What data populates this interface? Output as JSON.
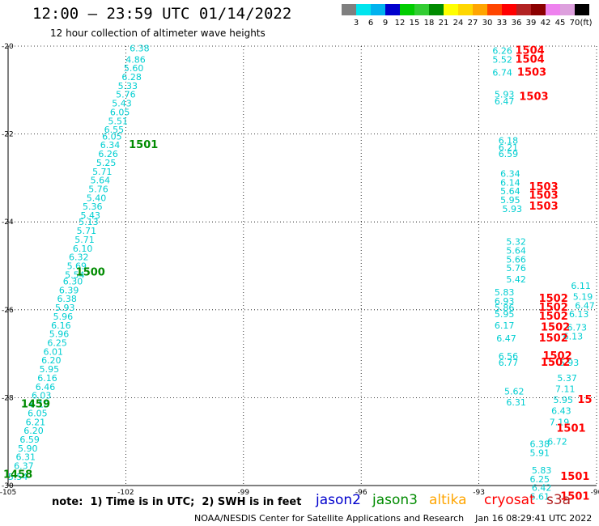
{
  "header": {
    "title": "12:00 – 23:59 UTC 01/14/2022",
    "subtitle": "12 hour collection of altimeter wave heights"
  },
  "colorbar": {
    "unit_label": "(ft)",
    "bins": [
      {
        "label": "3",
        "color": "#7f7f7f"
      },
      {
        "label": "6",
        "color": "#00e5ee"
      },
      {
        "label": "9",
        "color": "#00b2ee"
      },
      {
        "label": "12",
        "color": "#0000cd"
      },
      {
        "label": "15",
        "color": "#00cd00"
      },
      {
        "label": "18",
        "color": "#32cd32"
      },
      {
        "label": "21",
        "color": "#008b00"
      },
      {
        "label": "24",
        "color": "#ffff00"
      },
      {
        "label": "27",
        "color": "#ffd700"
      },
      {
        "label": "30",
        "color": "#ffa500"
      },
      {
        "label": "33",
        "color": "#ff4500"
      },
      {
        "label": "36",
        "color": "#ff0000"
      },
      {
        "label": "39",
        "color": "#b22222"
      },
      {
        "label": "42",
        "color": "#8b0000"
      },
      {
        "label": "45",
        "color": "#ee82ee"
      },
      {
        "label": "70",
        "color": "#dda0dd"
      },
      {
        "label": "",
        "color": "#000000"
      }
    ]
  },
  "map": {
    "lon_range": [
      -105,
      -90
    ],
    "lat_range": [
      -30,
      -20
    ],
    "lon_ticks": [
      "-105",
      "-102",
      "-99",
      "-96",
      "-93",
      "-90"
    ],
    "lat_ticks": [
      "-20",
      "-22",
      "-24",
      "-26",
      "-28",
      "-30"
    ]
  },
  "swh_labels": [
    {
      "text": "6.38",
      "lon": -101.65,
      "lat": -20.05,
      "color": "#00ced1"
    },
    {
      "text": "4.86",
      "lon": -101.75,
      "lat": -20.3,
      "color": "#00ced1"
    },
    {
      "text": "5.60",
      "lon": -101.8,
      "lat": -20.5,
      "color": "#00ced1"
    },
    {
      "text": "6.28",
      "lon": -101.85,
      "lat": -20.7,
      "color": "#00ced1"
    },
    {
      "text": "5.33",
      "lon": -101.95,
      "lat": -20.9,
      "color": "#00ced1"
    },
    {
      "text": "5.76",
      "lon": -102.0,
      "lat": -21.1,
      "color": "#00ced1"
    },
    {
      "text": "5.43",
      "lon": -102.1,
      "lat": -21.3,
      "color": "#00ced1"
    },
    {
      "text": "6.05",
      "lon": -102.15,
      "lat": -21.5,
      "color": "#00ced1"
    },
    {
      "text": "5.51",
      "lon": -102.2,
      "lat": -21.7,
      "color": "#00ced1"
    },
    {
      "text": "6.55",
      "lon": -102.3,
      "lat": -21.9,
      "color": "#00ced1"
    },
    {
      "text": "6.05",
      "lon": -102.35,
      "lat": -22.05,
      "color": "#00ced1"
    },
    {
      "text": "6.34",
      "lon": -102.4,
      "lat": -22.25,
      "color": "#00ced1"
    },
    {
      "text": "6.26",
      "lon": -102.45,
      "lat": -22.45,
      "color": "#00ced1"
    },
    {
      "text": "5.25",
      "lon": -102.5,
      "lat": -22.65,
      "color": "#00ced1"
    },
    {
      "text": "5.71",
      "lon": -102.6,
      "lat": -22.85,
      "color": "#00ced1"
    },
    {
      "text": "5.64",
      "lon": -102.65,
      "lat": -23.05,
      "color": "#00ced1"
    },
    {
      "text": "5.76",
      "lon": -102.7,
      "lat": -23.25,
      "color": "#00ced1"
    },
    {
      "text": "5.40",
      "lon": -102.75,
      "lat": -23.45,
      "color": "#00ced1"
    },
    {
      "text": "5.36",
      "lon": -102.85,
      "lat": -23.65,
      "color": "#00ced1"
    },
    {
      "text": "5.43",
      "lon": -102.9,
      "lat": -23.85,
      "color": "#00ced1"
    },
    {
      "text": "5.13",
      "lon": -102.95,
      "lat": -24.0,
      "color": "#00ced1"
    },
    {
      "text": "5.71",
      "lon": -103.0,
      "lat": -24.2,
      "color": "#00ced1"
    },
    {
      "text": "5.71",
      "lon": -103.05,
      "lat": -24.4,
      "color": "#00ced1"
    },
    {
      "text": "6.10",
      "lon": -103.1,
      "lat": -24.6,
      "color": "#00ced1"
    },
    {
      "text": "6.32",
      "lon": -103.2,
      "lat": -24.8,
      "color": "#00ced1"
    },
    {
      "text": "5.69",
      "lon": -103.25,
      "lat": -25.0,
      "color": "#00ced1"
    },
    {
      "text": "5.54",
      "lon": -103.3,
      "lat": -25.2,
      "color": "#00ced1"
    },
    {
      "text": "6.30",
      "lon": -103.35,
      "lat": -25.35,
      "color": "#00ced1"
    },
    {
      "text": "6.39",
      "lon": -103.45,
      "lat": -25.55,
      "color": "#00ced1"
    },
    {
      "text": "6.38",
      "lon": -103.5,
      "lat": -25.75,
      "color": "#00ced1"
    },
    {
      "text": "5.93",
      "lon": -103.55,
      "lat": -25.95,
      "color": "#00ced1"
    },
    {
      "text": "5.96",
      "lon": -103.6,
      "lat": -26.15,
      "color": "#00ced1"
    },
    {
      "text": "6.16",
      "lon": -103.65,
      "lat": -26.35,
      "color": "#00ced1"
    },
    {
      "text": "5.96",
      "lon": -103.7,
      "lat": -26.55,
      "color": "#00ced1"
    },
    {
      "text": "6.25",
      "lon": -103.75,
      "lat": -26.75,
      "color": "#00ced1"
    },
    {
      "text": "6.01",
      "lon": -103.85,
      "lat": -26.95,
      "color": "#00ced1"
    },
    {
      "text": "6.20",
      "lon": -103.9,
      "lat": -27.15,
      "color": "#00ced1"
    },
    {
      "text": "5.95",
      "lon": -103.95,
      "lat": -27.35,
      "color": "#00ced1"
    },
    {
      "text": "6.16",
      "lon": -104.0,
      "lat": -27.55,
      "color": "#00ced1"
    },
    {
      "text": "6.46",
      "lon": -104.05,
      "lat": -27.75,
      "color": "#00ced1"
    },
    {
      "text": "6.03",
      "lon": -104.15,
      "lat": -27.95,
      "color": "#00ced1"
    },
    {
      "text": "6.18",
      "lon": -104.2,
      "lat": -28.15,
      "color": "#00ced1"
    },
    {
      "text": "6.05",
      "lon": -104.25,
      "lat": -28.35,
      "color": "#00ced1"
    },
    {
      "text": "6.21",
      "lon": -104.3,
      "lat": -28.55,
      "color": "#00ced1"
    },
    {
      "text": "6.20",
      "lon": -104.35,
      "lat": -28.75,
      "color": "#00ced1"
    },
    {
      "text": "6.59",
      "lon": -104.45,
      "lat": -28.95,
      "color": "#00ced1"
    },
    {
      "text": "5.90",
      "lon": -104.5,
      "lat": -29.15,
      "color": "#00ced1"
    },
    {
      "text": "6.31",
      "lon": -104.55,
      "lat": -29.35,
      "color": "#00ced1"
    },
    {
      "text": "6.37",
      "lon": -104.6,
      "lat": -29.55,
      "color": "#00ced1"
    },
    {
      "text": "5.54",
      "lon": -104.75,
      "lat": -29.8,
      "color": "#00ced1"
    },
    {
      "text": "6.26",
      "lon": -92.4,
      "lat": -20.1,
      "color": "#00ced1"
    },
    {
      "text": "5.52",
      "lon": -92.4,
      "lat": -20.3,
      "color": "#00ced1"
    },
    {
      "text": "6.74",
      "lon": -92.4,
      "lat": -20.6,
      "color": "#00ced1"
    },
    {
      "text": "5.93",
      "lon": -92.35,
      "lat": -21.1,
      "color": "#00ced1"
    },
    {
      "text": "6.47",
      "lon": -92.35,
      "lat": -21.25,
      "color": "#00ced1"
    },
    {
      "text": "6.18",
      "lon": -92.25,
      "lat": -22.15,
      "color": "#00ced1"
    },
    {
      "text": "6.21",
      "lon": -92.25,
      "lat": -22.3,
      "color": "#00ced1"
    },
    {
      "text": "6.59",
      "lon": -92.25,
      "lat": -22.45,
      "color": "#00ced1"
    },
    {
      "text": "6.34",
      "lon": -92.2,
      "lat": -22.9,
      "color": "#00ced1"
    },
    {
      "text": "6.14",
      "lon": -92.2,
      "lat": -23.1,
      "color": "#00ced1"
    },
    {
      "text": "5.64",
      "lon": -92.2,
      "lat": -23.3,
      "color": "#00ced1"
    },
    {
      "text": "5.95",
      "lon": -92.2,
      "lat": -23.5,
      "color": "#00ced1"
    },
    {
      "text": "5.93",
      "lon": -92.15,
      "lat": -23.7,
      "color": "#00ced1"
    },
    {
      "text": "5.32",
      "lon": -92.05,
      "lat": -24.45,
      "color": "#00ced1"
    },
    {
      "text": "5.64",
      "lon": -92.05,
      "lat": -24.65,
      "color": "#00ced1"
    },
    {
      "text": "5.66",
      "lon": -92.05,
      "lat": -24.85,
      "color": "#00ced1"
    },
    {
      "text": "5.76",
      "lon": -92.05,
      "lat": -25.05,
      "color": "#00ced1"
    },
    {
      "text": "5.42",
      "lon": -92.05,
      "lat": -25.3,
      "color": "#00ced1"
    },
    {
      "text": "5.83",
      "lon": -92.35,
      "lat": -25.6,
      "color": "#00ced1"
    },
    {
      "text": "6.93",
      "lon": -92.35,
      "lat": -25.8,
      "color": "#00ced1"
    },
    {
      "text": "5.86",
      "lon": -92.35,
      "lat": -25.95,
      "color": "#00ced1"
    },
    {
      "text": "5.95",
      "lon": -92.35,
      "lat": -26.1,
      "color": "#00ced1"
    },
    {
      "text": "6.17",
      "lon": -92.35,
      "lat": -26.35,
      "color": "#00ced1"
    },
    {
      "text": "6.47",
      "lon": -92.3,
      "lat": -26.65,
      "color": "#00ced1"
    },
    {
      "text": "6.56",
      "lon": -92.25,
      "lat": -27.05,
      "color": "#00ced1"
    },
    {
      "text": "6.77",
      "lon": -92.25,
      "lat": -27.2,
      "color": "#00ced1"
    },
    {
      "text": "5.62",
      "lon": -92.1,
      "lat": -27.85,
      "color": "#00ced1"
    },
    {
      "text": "6.31",
      "lon": -92.05,
      "lat": -28.1,
      "color": "#00ced1"
    },
    {
      "text": "6.38",
      "lon": -91.45,
      "lat": -29.05,
      "color": "#00ced1"
    },
    {
      "text": "5.91",
      "lon": -91.45,
      "lat": -29.25,
      "color": "#00ced1"
    },
    {
      "text": "5.83",
      "lon": -91.4,
      "lat": -29.65,
      "color": "#00ced1"
    },
    {
      "text": "6.25",
      "lon": -91.45,
      "lat": -29.85,
      "color": "#00ced1"
    },
    {
      "text": "6.42",
      "lon": -91.4,
      "lat": -30.05,
      "color": "#00ced1"
    },
    {
      "text": "6.61",
      "lon": -91.45,
      "lat": -30.25,
      "color": "#00ced1"
    },
    {
      "text": "6.11",
      "lon": -90.4,
      "lat": -25.45,
      "color": "#00ced1"
    },
    {
      "text": "5.19",
      "lon": -90.35,
      "lat": -25.7,
      "color": "#00ced1"
    },
    {
      "text": "6.47",
      "lon": -90.3,
      "lat": -25.9,
      "color": "#00ced1"
    },
    {
      "text": "6.13",
      "lon": -90.45,
      "lat": -26.1,
      "color": "#00ced1"
    },
    {
      "text": "6.73",
      "lon": -90.5,
      "lat": -26.4,
      "color": "#00ced1"
    },
    {
      "text": "6.13",
      "lon": -90.6,
      "lat": -26.6,
      "color": "#00ced1"
    },
    {
      "text": "5.93",
      "lon": -90.7,
      "lat": -27.2,
      "color": "#00ced1"
    },
    {
      "text": "5.37",
      "lon": -90.75,
      "lat": -27.55,
      "color": "#00ced1"
    },
    {
      "text": "7.11",
      "lon": -90.8,
      "lat": -27.8,
      "color": "#00ced1"
    },
    {
      "text": "5.95",
      "lon": -90.85,
      "lat": -28.05,
      "color": "#00ced1"
    },
    {
      "text": "6.43",
      "lon": -90.9,
      "lat": -28.3,
      "color": "#00ced1"
    },
    {
      "text": "7.19",
      "lon": -90.95,
      "lat": -28.55,
      "color": "#00ced1"
    },
    {
      "text": "6.72",
      "lon": -91.0,
      "lat": -29.0,
      "color": "#00ced1"
    },
    {
      "text": "1501",
      "lon": -101.55,
      "lat": -22.25,
      "color": "#008b00"
    },
    {
      "text": "1500",
      "lon": -102.9,
      "lat": -25.15,
      "color": "#008b00"
    },
    {
      "text": "1459",
      "lon": -104.3,
      "lat": -28.15,
      "color": "#008b00"
    },
    {
      "text": "1458",
      "lon": -104.75,
      "lat": -29.75,
      "color": "#008b00"
    },
    {
      "text": "1504",
      "lon": -91.7,
      "lat": -20.1,
      "color": "#ff0000"
    },
    {
      "text": "1504",
      "lon": -91.7,
      "lat": -20.3,
      "color": "#ff0000"
    },
    {
      "text": "1503",
      "lon": -91.65,
      "lat": -20.6,
      "color": "#ff0000"
    },
    {
      "text": "1503",
      "lon": -91.6,
      "lat": -21.15,
      "color": "#ff0000"
    },
    {
      "text": "1503",
      "lon": -91.35,
      "lat": -23.2,
      "color": "#ff0000"
    },
    {
      "text": "1503",
      "lon": -91.35,
      "lat": -23.4,
      "color": "#ff0000"
    },
    {
      "text": "1503",
      "lon": -91.35,
      "lat": -23.65,
      "color": "#ff0000"
    },
    {
      "text": "1502",
      "lon": -91.1,
      "lat": -25.75,
      "color": "#ff0000"
    },
    {
      "text": "1502",
      "lon": -91.1,
      "lat": -25.95,
      "color": "#ff0000"
    },
    {
      "text": "1502",
      "lon": -91.1,
      "lat": -26.15,
      "color": "#ff0000"
    },
    {
      "text": "1502",
      "lon": -91.05,
      "lat": -26.4,
      "color": "#ff0000"
    },
    {
      "text": "1502",
      "lon": -91.1,
      "lat": -26.65,
      "color": "#ff0000"
    },
    {
      "text": "1502",
      "lon": -91.0,
      "lat": -27.05,
      "color": "#ff0000"
    },
    {
      "text": "1502",
      "lon": -91.05,
      "lat": -27.2,
      "color": "#ff0000"
    },
    {
      "text": "1501",
      "lon": -90.65,
      "lat": -28.7,
      "color": "#ff0000"
    },
    {
      "text": "1501",
      "lon": -90.55,
      "lat": -29.8,
      "color": "#ff0000"
    },
    {
      "text": "1501",
      "lon": -90.55,
      "lat": -30.25,
      "color": "#ff0000"
    },
    {
      "text": "15",
      "lon": -90.3,
      "lat": -28.05,
      "color": "#ff0000"
    }
  ],
  "footer": {
    "note": "note:  1) Time is in UTC;  2) SWH is in feet",
    "satellites": [
      {
        "name": "jason2",
        "color": "#0000cd"
      },
      {
        "name": "jason3",
        "color": "#008b00"
      },
      {
        "name": "altika",
        "color": "#ffa500"
      },
      {
        "name": "cryosat",
        "color": "#ff0000"
      },
      {
        "name": "s3a",
        "color": "#b22222"
      }
    ],
    "credit": "NOAA/NESDIS Center for Satellite Applications and Research    Jan 16 08:29:41 UTC 2022"
  }
}
